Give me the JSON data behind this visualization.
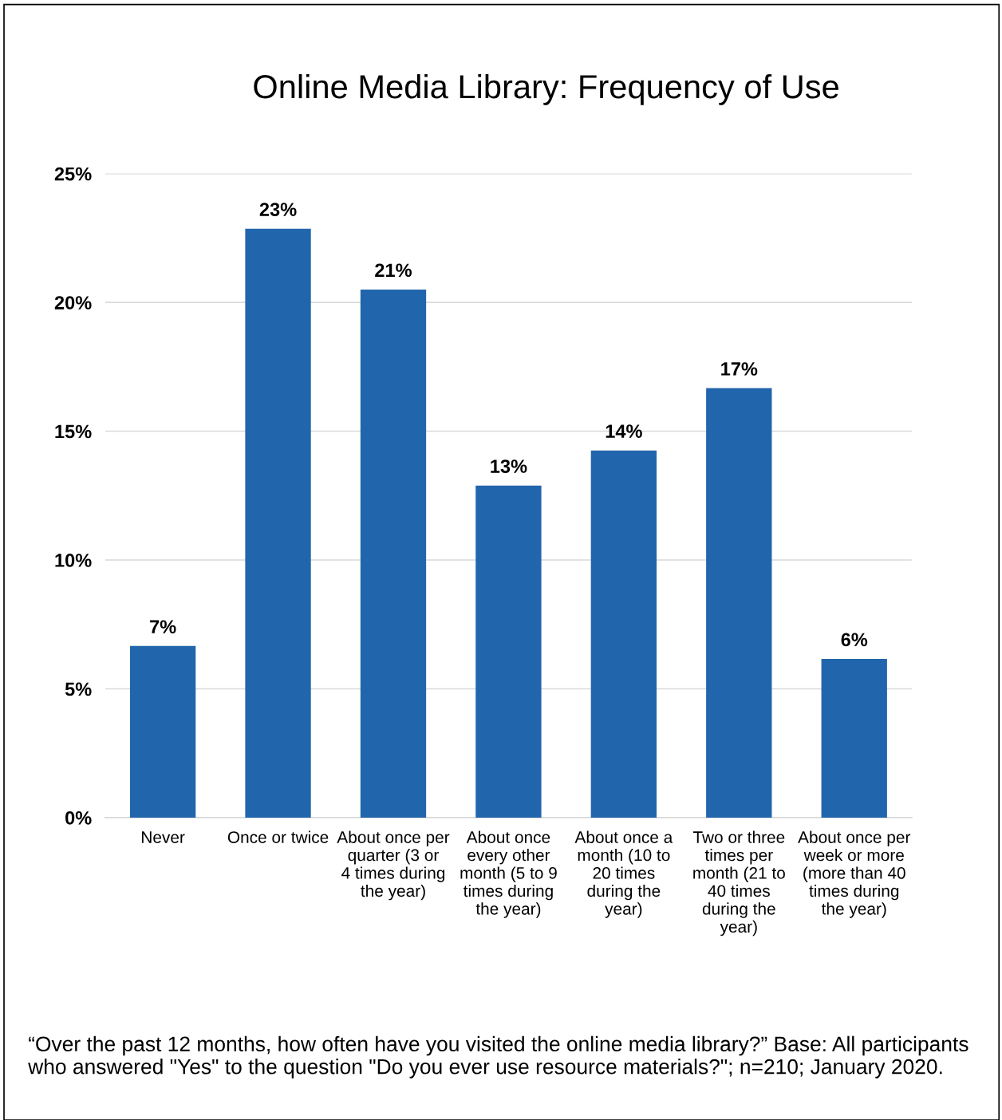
{
  "chart_data": {
    "type": "bar",
    "title": "Online Media Library: Frequency of Use",
    "categories": [
      "Never",
      "Once or twice",
      "About once per quarter (3 or 4 times during the year)",
      "About once every other month (5 to 9 times during the year)",
      "About once a month (10 to 20 times during the year)",
      "Two or three times per month (21 to 40 times during the year)",
      "About once per week or more (more than 40 times during the year)"
    ],
    "values": [
      6.66,
      22.86,
      20.5,
      12.89,
      14.25,
      16.67,
      6.16
    ],
    "value_labels": [
      "7%",
      "23%",
      "21%",
      "13%",
      "14%",
      "17%",
      "6%"
    ],
    "color": "#2166ac",
    "ylim": [
      0,
      25
    ],
    "yticks": [
      {
        "value": 0,
        "label": "0%"
      },
      {
        "value": 5,
        "label": "5%"
      },
      {
        "value": 10,
        "label": "10%"
      },
      {
        "value": 15,
        "label": "15%"
      },
      {
        "value": 20,
        "label": "20%"
      },
      {
        "value": 25,
        "label": "25%"
      }
    ],
    "grid": "y",
    "annotations": [
      "“Over the past 12 months, how often have you visited the online media library?” Base: All participants who answered \"Yes\" to the question \"Do you ever use resource materials?\"; n=210; January 2020."
    ]
  }
}
